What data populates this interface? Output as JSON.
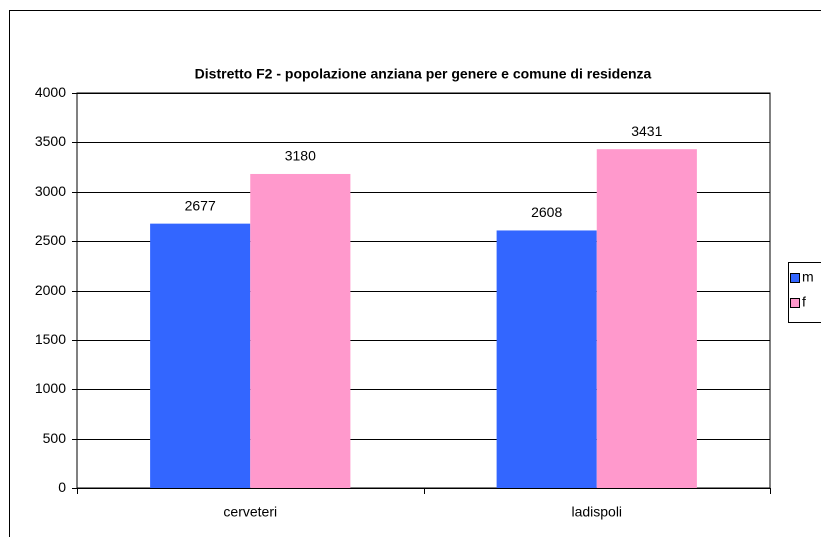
{
  "chart_data": {
    "type": "bar",
    "title": "Distretto F2 - popolazione anziana per genere e comune di residenza",
    "categories": [
      "cerveteri",
      "ladispoli"
    ],
    "series": [
      {
        "name": "m",
        "color": "#3366ff",
        "values": [
          2677,
          2608
        ]
      },
      {
        "name": "f",
        "color": "#ff99cc",
        "values": [
          3180,
          3431
        ]
      }
    ],
    "ylim": [
      0,
      4000
    ],
    "yticks": [
      0,
      500,
      1000,
      1500,
      2000,
      2500,
      3000,
      3500,
      4000
    ],
    "grid": true,
    "legend": "right"
  }
}
